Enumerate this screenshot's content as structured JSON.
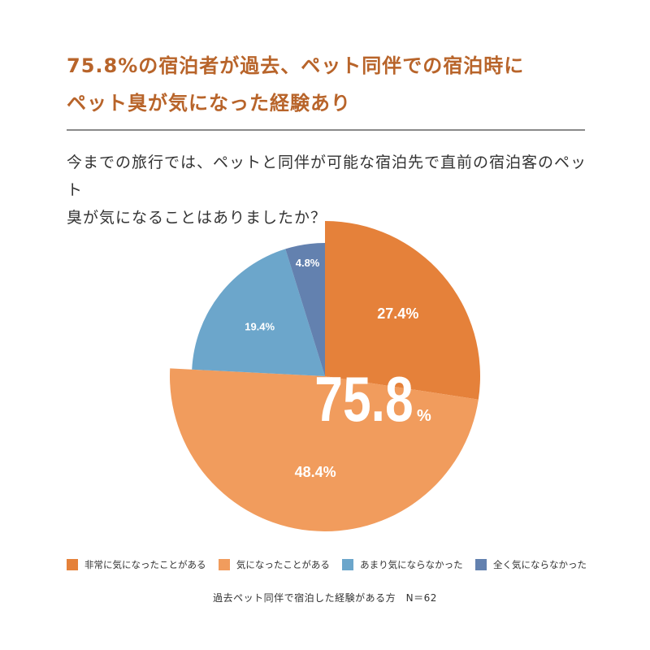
{
  "title": {
    "line1": "75.8%の宿泊者が過去、ペット同伴での宿泊時に",
    "line2": "ペット臭が気になった経験あり"
  },
  "question": {
    "line1": "今までの旅行では、ペットと同伴が可能な宿泊先で直前の宿泊客のペット",
    "line2": "臭が気になることはありましたか？"
  },
  "chart_data": {
    "type": "pie",
    "categories": [
      "非常に気になったことがある",
      "気になったことがある",
      "あまり気にならなかった",
      "全く気にならなかった"
    ],
    "values": [
      27.4,
      48.4,
      19.4,
      4.8
    ],
    "labels": [
      "27.4%",
      "48.4%",
      "19.4%",
      "4.8%"
    ],
    "colors": [
      "#e5813a",
      "#f19c5d",
      "#6ca6cb",
      "#6381af"
    ],
    "highlighted": [
      true,
      true,
      false,
      false
    ],
    "center_value": "75.8",
    "center_unit": "%",
    "legend_position": "bottom",
    "start": "top",
    "direction": "clockwise"
  },
  "footer": "過去ペット同伴で宿泊した経験がある方　N＝62"
}
